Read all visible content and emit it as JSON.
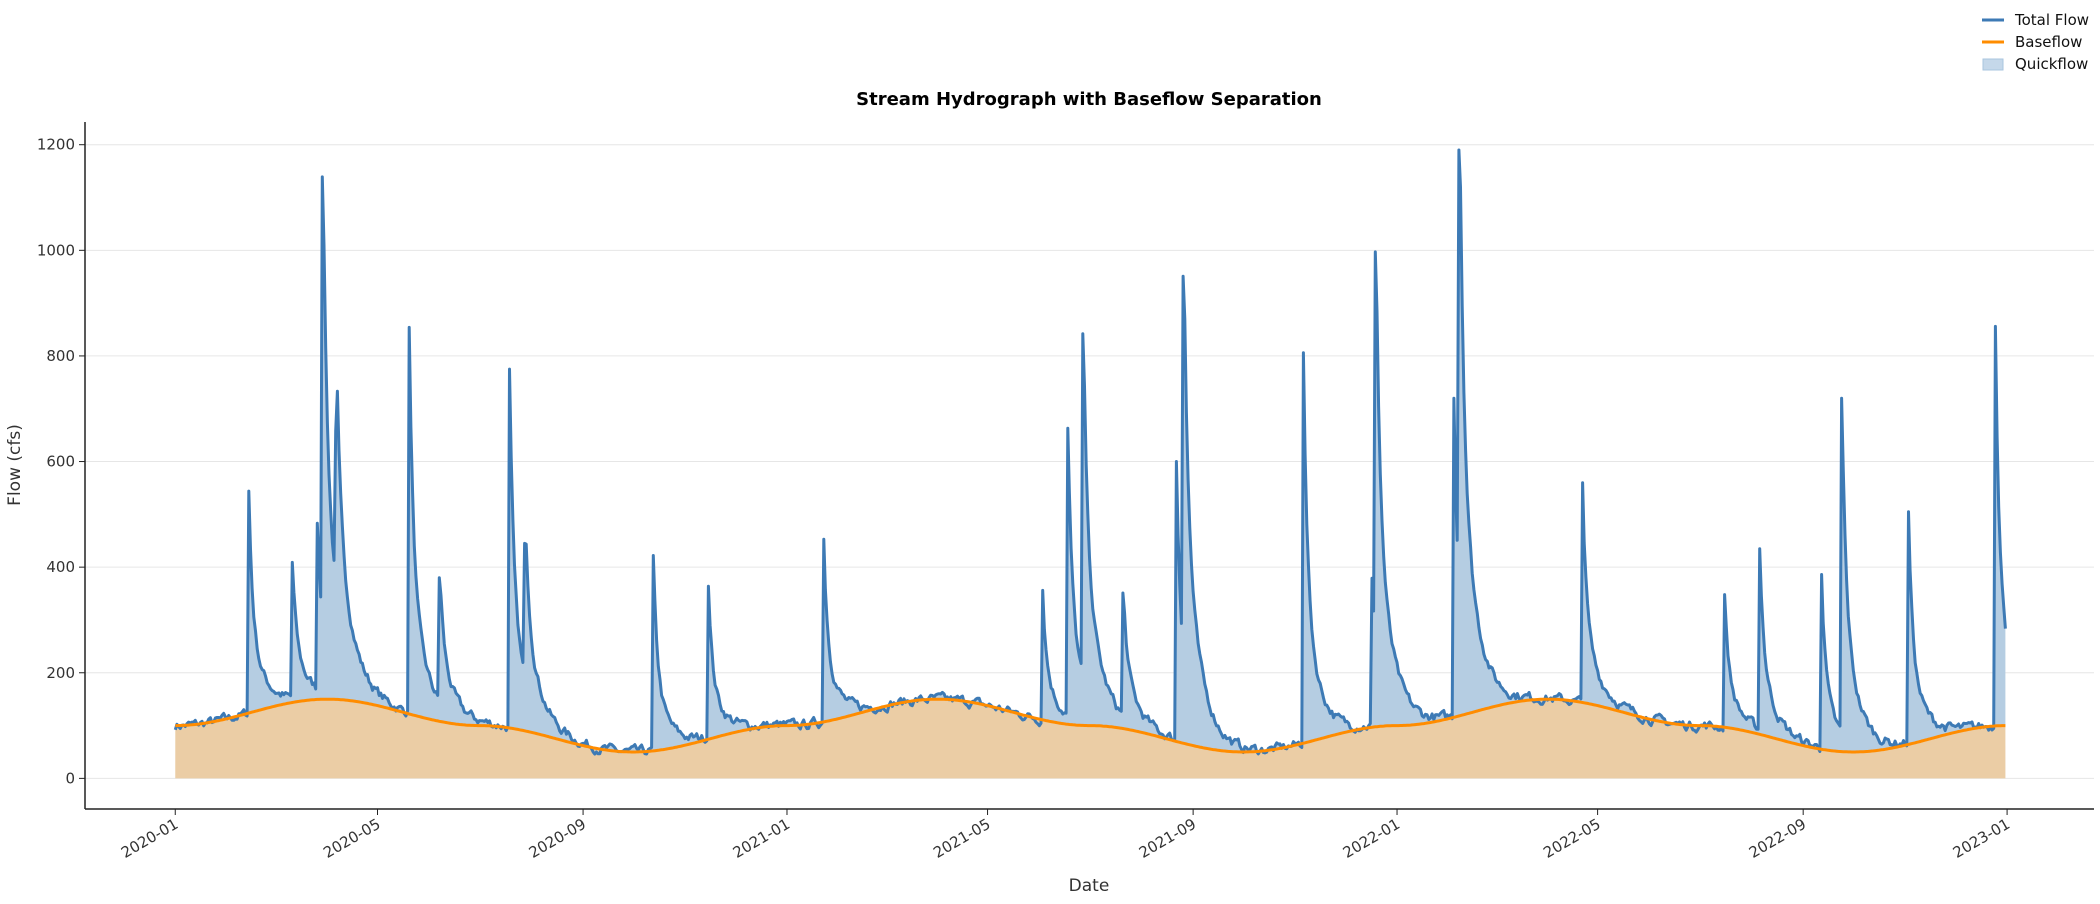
{
  "chart_data": {
    "type": "line",
    "title": "Stream Hydrograph with Baseflow Separation",
    "xlabel": "Date",
    "ylabel": "Flow (cfs)",
    "x_range": [
      "2020-01-01",
      "2022-12-31"
    ],
    "xlim": [
      "2019-11-08",
      "2023-02-22"
    ],
    "ylim": [
      -58,
      1243
    ],
    "grid": "y-only",
    "legend_position": "top-right",
    "x_ticks": [
      "2020-01",
      "2020-05",
      "2020-09",
      "2021-01",
      "2021-05",
      "2021-09",
      "2022-01",
      "2022-05",
      "2022-09",
      "2023-01"
    ],
    "y_ticks": [
      0,
      200,
      400,
      600,
      800,
      1000,
      1200
    ],
    "series": [
      {
        "name": "Total Flow",
        "color": "#3d7ab5",
        "storm_peaks": [
          {
            "date": "2020-02-14",
            "value": 544
          },
          {
            "date": "2020-03-11",
            "value": 409
          },
          {
            "date": "2020-03-26",
            "value": 483
          },
          {
            "date": "2020-03-29",
            "value": 1139
          },
          {
            "date": "2020-04-06",
            "value": 658
          },
          {
            "date": "2020-05-20",
            "value": 854
          },
          {
            "date": "2020-06-07",
            "value": 380
          },
          {
            "date": "2020-07-19",
            "value": 775
          },
          {
            "date": "2020-07-28",
            "value": 445
          },
          {
            "date": "2020-10-13",
            "value": 422
          },
          {
            "date": "2020-11-15",
            "value": 364
          },
          {
            "date": "2021-01-23",
            "value": 453
          },
          {
            "date": "2021-06-03",
            "value": 356
          },
          {
            "date": "2021-06-18",
            "value": 663
          },
          {
            "date": "2021-06-27",
            "value": 842
          },
          {
            "date": "2021-07-21",
            "value": 351
          },
          {
            "date": "2021-08-22",
            "value": 600
          },
          {
            "date": "2021-08-26",
            "value": 951
          },
          {
            "date": "2021-11-06",
            "value": 806
          },
          {
            "date": "2021-12-17",
            "value": 379
          },
          {
            "date": "2021-12-19",
            "value": 997
          },
          {
            "date": "2022-02-04",
            "value": 720
          },
          {
            "date": "2022-02-07",
            "value": 1190
          },
          {
            "date": "2022-04-22",
            "value": 560
          },
          {
            "date": "2022-07-16",
            "value": 348
          },
          {
            "date": "2022-08-06",
            "value": 435
          },
          {
            "date": "2022-09-12",
            "value": 386
          },
          {
            "date": "2022-09-24",
            "value": 720
          },
          {
            "date": "2022-11-03",
            "value": 505
          },
          {
            "date": "2022-12-25",
            "value": 856
          }
        ]
      },
      {
        "name": "Baseflow",
        "color": "#ff8c00",
        "points": [
          {
            "date": "2020-01-01",
            "value": 100
          },
          {
            "date": "2020-04-01",
            "value": 150
          },
          {
            "date": "2020-07-01",
            "value": 100
          },
          {
            "date": "2020-10-01",
            "value": 50
          },
          {
            "date": "2021-01-01",
            "value": 100
          },
          {
            "date": "2021-04-01",
            "value": 150
          },
          {
            "date": "2021-07-01",
            "value": 100
          },
          {
            "date": "2021-10-01",
            "value": 50
          },
          {
            "date": "2022-01-01",
            "value": 100
          },
          {
            "date": "2022-04-01",
            "value": 150
          },
          {
            "date": "2022-07-01",
            "value": 100
          },
          {
            "date": "2022-10-01",
            "value": 50
          },
          {
            "date": "2023-01-01",
            "value": 100
          }
        ]
      },
      {
        "name": "Quickflow",
        "color": "#a9c6df"
      }
    ]
  }
}
